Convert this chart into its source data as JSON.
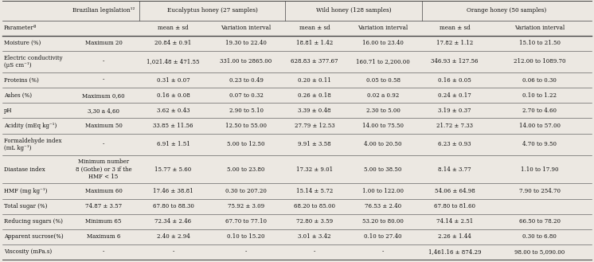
{
  "rows": [
    [
      "Moisture (%)",
      "Maximum 20",
      "20.84 ± 0.91",
      "19.30 to 22.40",
      "18.81 ± 1.42",
      "16.00 to 23.40",
      "17.82 ± 1.12",
      "15.10 to 21.50"
    ],
    [
      "Electric conductivity\n(μS cm⁻¹)",
      "-",
      "1,021.48 ± 471.55",
      "331.00 to 2865.00",
      "628.83 ± 377.67",
      "160.71 to 2,200.00",
      "346.93 ± 127.56",
      "212.00 to 1089.70"
    ],
    [
      "Proteins (%)",
      "-",
      "0.31 ± 0.07",
      "0.23 to 0.49",
      "0.20 ± 0.11",
      "0.05 to 0.58",
      "0.16 ± 0.05",
      "0.06 to 0.30"
    ],
    [
      "Ashes (%)",
      "Maximum 0,60",
      "0.16 ± 0.08",
      "0.07 to 0.32",
      "0.26 ± 0.18",
      "0.02 a 0.92",
      "0.24 ± 0.17",
      "0.10 to 1.22"
    ],
    [
      "pH",
      "3,30 a 4,60",
      "3.62 ± 0.43",
      "2.90 to 5.10",
      "3.39 ± 0.48",
      "2.30 to 5.00",
      "3.19 ± 0.37",
      "2.70 to 4.60"
    ],
    [
      "Acidity (mEq kg⁻¹)",
      "Maximum 50",
      "33.85 ± 11.56",
      "12.50 to 55.00",
      "27.79 ± 12.53",
      "14.00 to 75.50",
      "21.72 ± 7.33",
      "14.00 to 57.00"
    ],
    [
      "Formaldehyde index\n(mL kg⁻¹)",
      "-",
      "6.91 ± 1.51",
      "5.00 to 12.50",
      "9.91 ± 3.58",
      "4.00 to 20.50",
      "6.23 ± 0.93",
      "4.70 to 9.50"
    ],
    [
      "Diastase index",
      "Minimum number\n8 (Gothe) or 3 if the\nHMF < 15",
      "15.77 ± 5.60",
      "5.00 to 23.80",
      "17.32 ± 9.01",
      "5.00 to 38.50",
      "8.14 ± 3.77",
      "1.10 to 17.90"
    ],
    [
      "HMF (mg kg⁻¹)",
      "Maximum 60",
      "17.46 ± 38.81",
      "0.30 to 207.20",
      "15.14 ± 5.72",
      "1.00 to 122.00",
      "54.06 ± 64.98",
      "7.90 to 254.70"
    ],
    [
      "Total sugar (%)",
      "74.87 ± 3.57",
      "67.80 to 88.30",
      "75.92 ± 3.09",
      "68.20 to 85.00",
      "76.53 ± 2.40",
      "67.80 to 81.60",
      ""
    ],
    [
      "Reducing sugars (%)",
      "Minimum 65",
      "72.34 ± 2.46",
      "67.70 to 77.10",
      "72.80 ± 3.59",
      "53.20 to 80.00",
      "74.14 ± 2.51",
      "66.50 to 78.20"
    ],
    [
      "Apparent sucrose(%)",
      "Maximum 6",
      "2.40 ± 2.94",
      "0.10 to 15.20",
      "3.01 ± 3.42",
      "0.10 to 27.40",
      "2.26 ± 1.44",
      "0.30 to 6.80"
    ],
    [
      "Viscosity (mPa.s)",
      "-",
      "-",
      "-",
      "-",
      "-",
      "1,461.16 ± 874.29",
      "98.00 to 5,090.00"
    ]
  ],
  "bg_color": "#ece8e2",
  "line_color": "#444444",
  "font_size": 5.0,
  "header_font_size": 5.2
}
